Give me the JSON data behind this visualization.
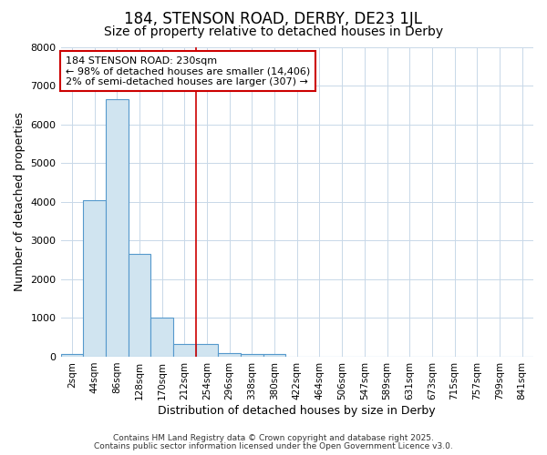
{
  "title": "184, STENSON ROAD, DERBY, DE23 1JL",
  "subtitle": "Size of property relative to detached houses in Derby",
  "xlabel": "Distribution of detached houses by size in Derby",
  "ylabel": "Number of detached properties",
  "bin_labels": [
    "2sqm",
    "44sqm",
    "86sqm",
    "128sqm",
    "170sqm",
    "212sqm",
    "254sqm",
    "296sqm",
    "338sqm",
    "380sqm",
    "422sqm",
    "464sqm",
    "506sqm",
    "547sqm",
    "589sqm",
    "631sqm",
    "673sqm",
    "715sqm",
    "757sqm",
    "799sqm",
    "841sqm"
  ],
  "bar_values": [
    75,
    4050,
    6650,
    2650,
    1000,
    320,
    320,
    100,
    75,
    75,
    0,
    0,
    0,
    0,
    0,
    0,
    0,
    0,
    0,
    0,
    0
  ],
  "bar_color": "#d0e4f0",
  "bar_edge_color": "#5599cc",
  "ylim": [
    0,
    8000
  ],
  "yticks": [
    0,
    1000,
    2000,
    3000,
    4000,
    5000,
    6000,
    7000,
    8000
  ],
  "vline_x": 5.5,
  "vline_color": "#cc0000",
  "annotation_text": "184 STENSON ROAD: 230sqm\n← 98% of detached houses are smaller (14,406)\n2% of semi-detached houses are larger (307) →",
  "annotation_box_color": "#cc0000",
  "background_color": "#ffffff",
  "grid_color": "#c8d8e8",
  "footer_line1": "Contains HM Land Registry data © Crown copyright and database right 2025.",
  "footer_line2": "Contains public sector information licensed under the Open Government Licence v3.0.",
  "title_fontsize": 12,
  "subtitle_fontsize": 10,
  "tick_fontsize": 8,
  "ylabel_fontsize": 9,
  "xlabel_fontsize": 9,
  "annot_fontsize": 8
}
